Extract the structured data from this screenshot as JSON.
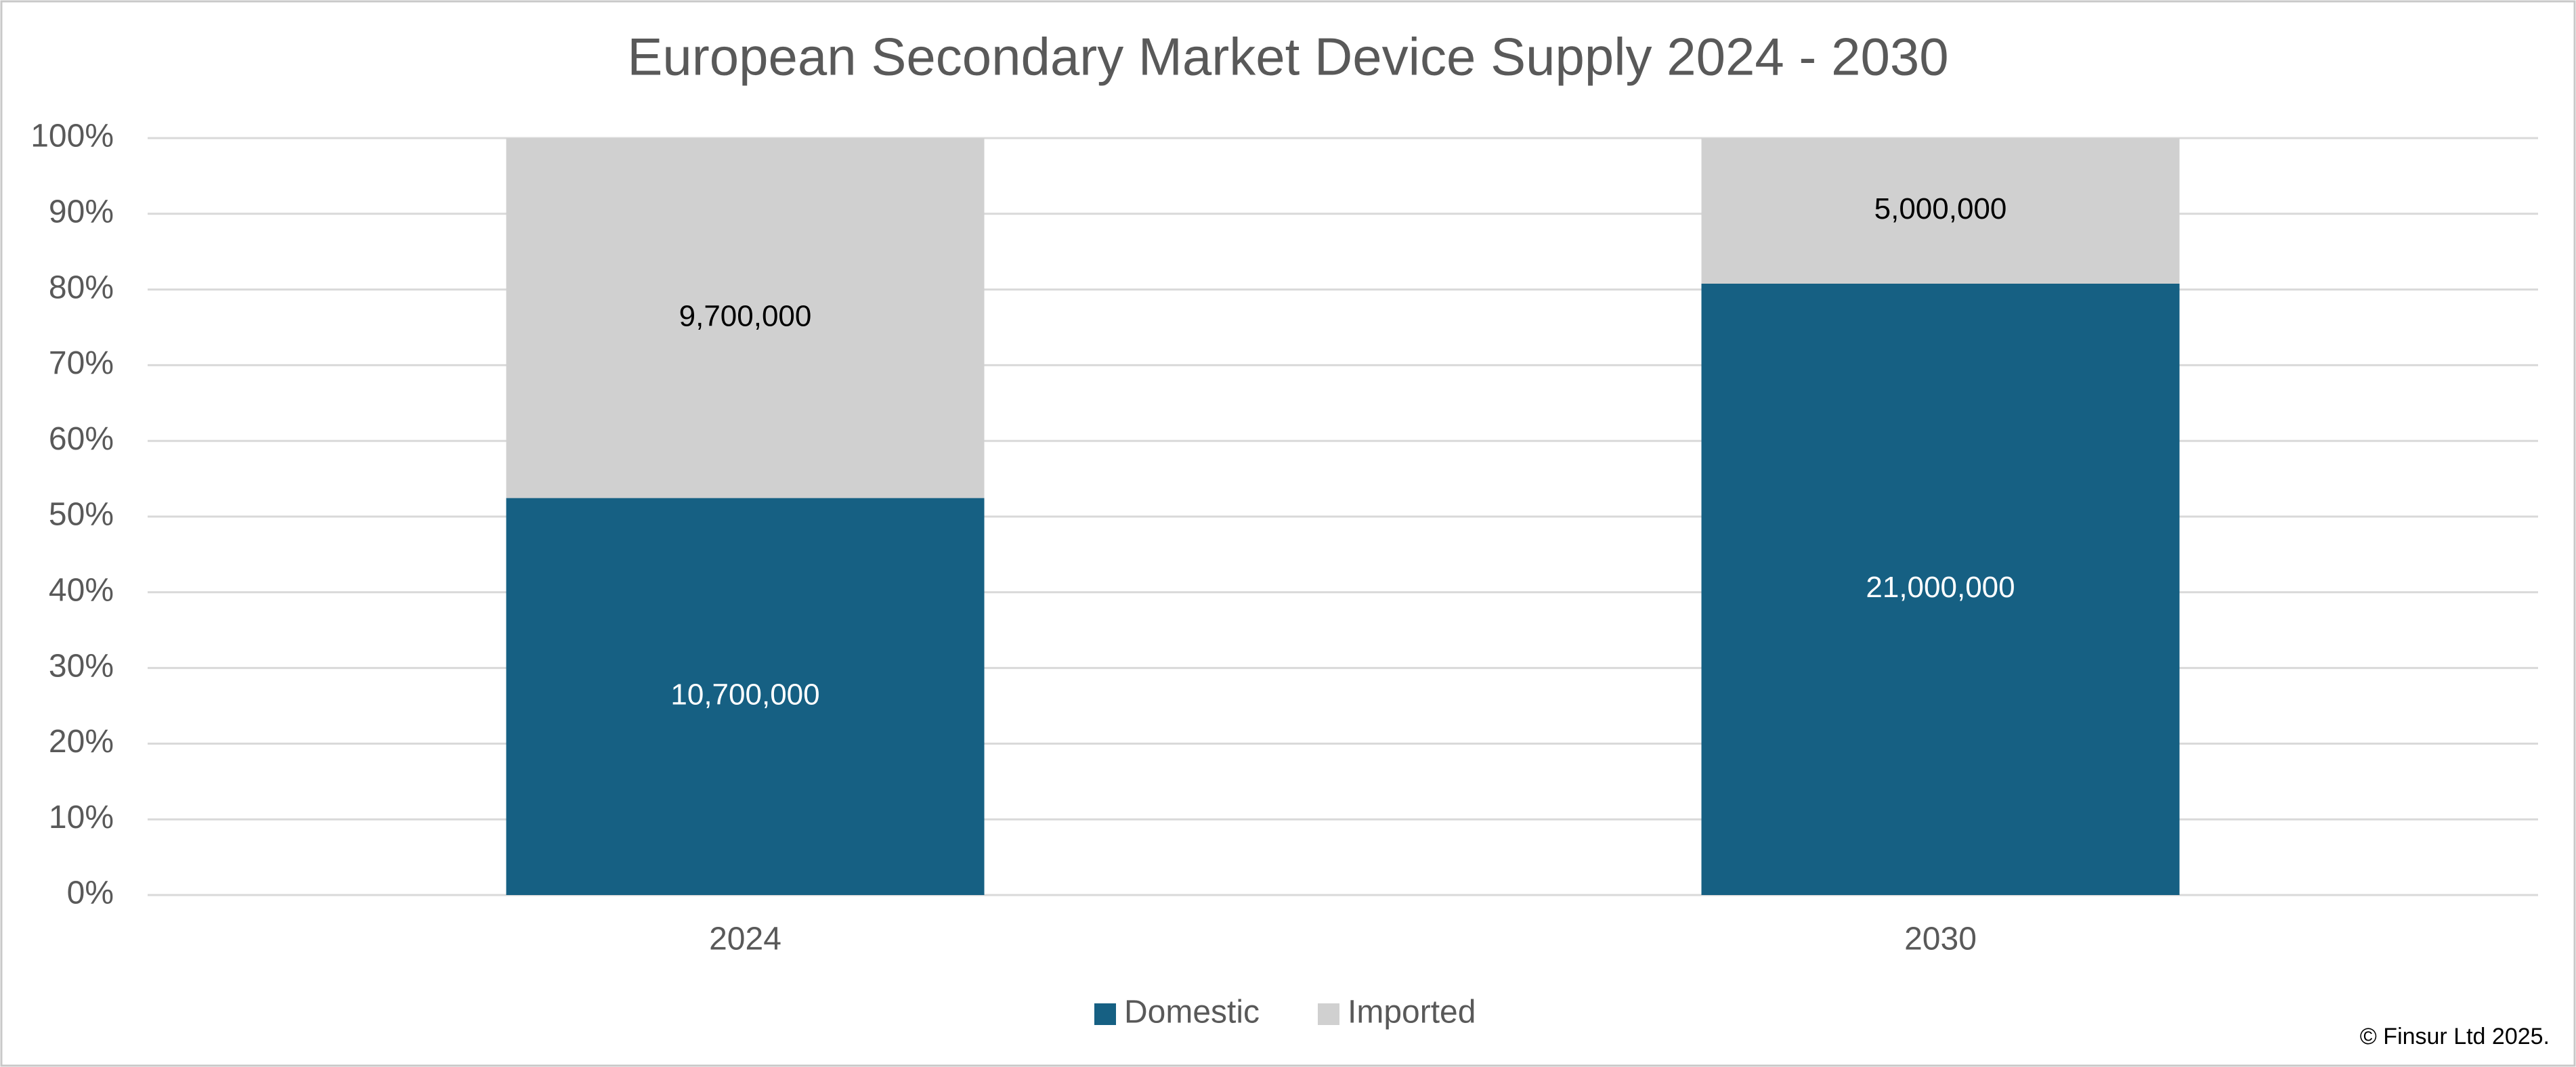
{
  "chart_data": {
    "type": "bar",
    "stacking": "percent",
    "title": "European Secondary Market Device Supply 2024 - 2030",
    "categories": [
      "2024",
      "2030"
    ],
    "series": [
      {
        "name": "Domestic",
        "color": "#166083",
        "label_color": "#ffffff",
        "values": [
          10700000,
          21000000
        ],
        "value_labels": [
          "10,700,000",
          "21,000,000"
        ]
      },
      {
        "name": "Imported",
        "color": "#d0d0d0",
        "label_color": "#000000",
        "values": [
          9700000,
          5000000
        ],
        "value_labels": [
          "9,700,000",
          "5,000,000"
        ]
      }
    ],
    "ylim": [
      0,
      100
    ],
    "yticks": [
      {
        "value": 0,
        "label": "0%"
      },
      {
        "value": 10,
        "label": "10%"
      },
      {
        "value": 20,
        "label": "20%"
      },
      {
        "value": 30,
        "label": "30%"
      },
      {
        "value": 40,
        "label": "40%"
      },
      {
        "value": 50,
        "label": "50%"
      },
      {
        "value": 60,
        "label": "60%"
      },
      {
        "value": 70,
        "label": "70%"
      },
      {
        "value": 80,
        "label": "80%"
      },
      {
        "value": 90,
        "label": "90%"
      },
      {
        "value": 100,
        "label": "100%"
      }
    ],
    "grid": true,
    "legend": "bottom",
    "note": "© Finsur Ltd 2025."
  }
}
